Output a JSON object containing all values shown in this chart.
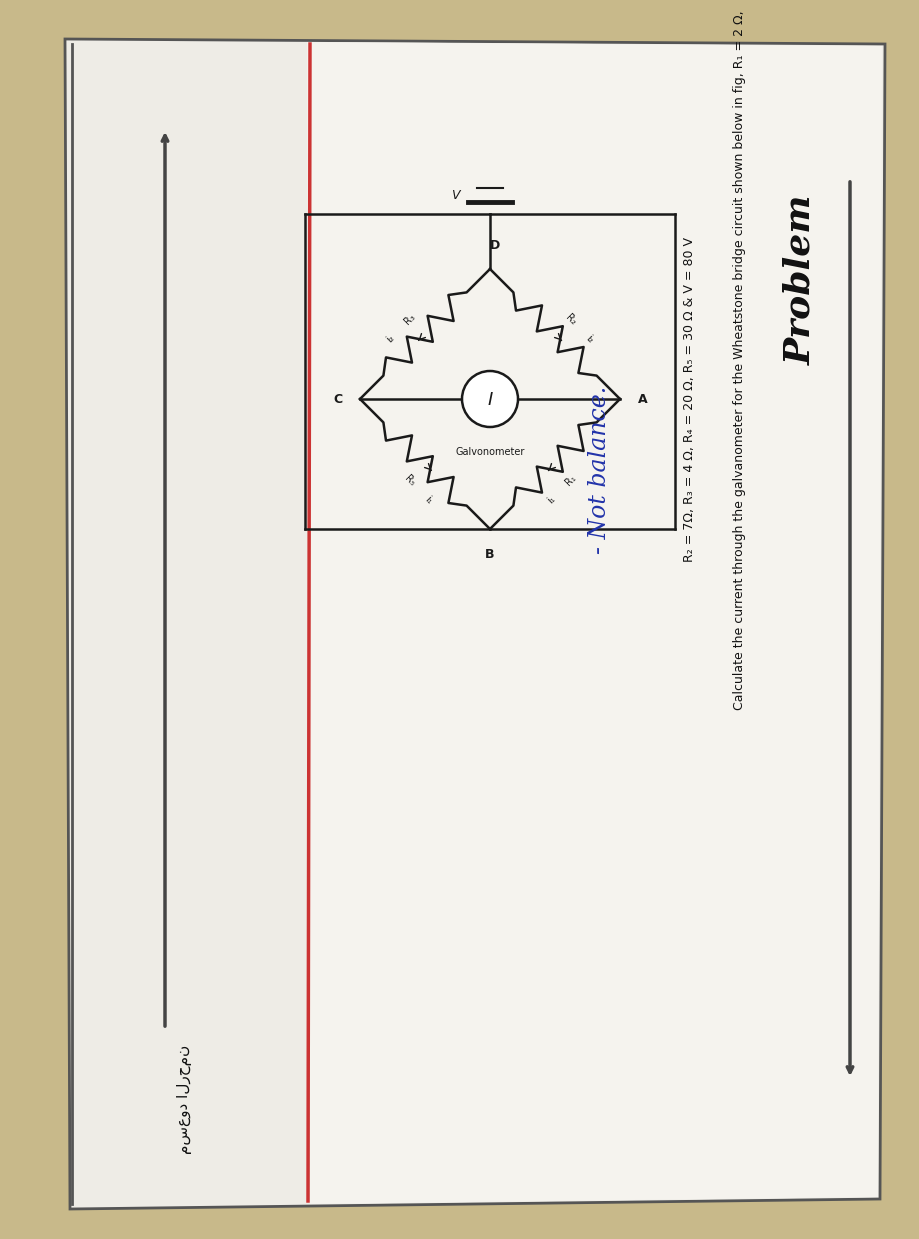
{
  "bg_color": "#c8b98a",
  "paper_bg": "#eeece6",
  "paper_light": "#f5f3ee",
  "circuit_color": "#1a1a1a",
  "title": "Problem",
  "line1": "Calculate the current through the galvanometer for the Wheatstone bridge circuit shown below in fig, R₁ = 2 Ω,",
  "line2": "R₂ = 7Ω, R₃ = 4 Ω, R₄ = 20 Ω, R₅ = 30 Ω & V = 80 V",
  "note": "- Not balance.",
  "arabic": "مسعود الرحمن",
  "galv_label": "Galvonometer",
  "border_color": "#555555",
  "rule_color": "#444444",
  "text_color": "#111111",
  "note_color": "#2233aa"
}
